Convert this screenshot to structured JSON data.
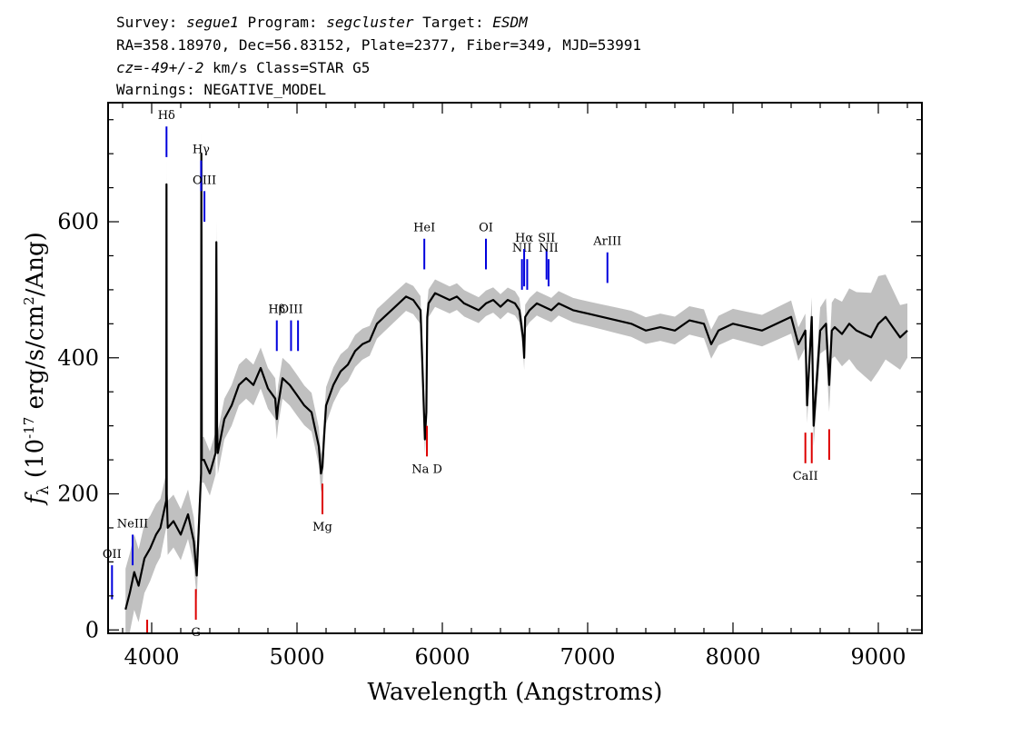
{
  "header": {
    "line1": {
      "a": "Survey: ",
      "survey": "segue1",
      "b": " Program: ",
      "program": "segcluster",
      "c": " Target: ",
      "target": "ESDM"
    },
    "line2": "RA=358.18970, Dec=56.83152, Plate=2377, Fiber=349, MJD=53991",
    "line3": {
      "cz": "cz=-49+/-2",
      "rest": " km/s Class=STAR G5"
    },
    "line4": "Warnings: NEGATIVE_MODEL"
  },
  "chart_data": {
    "type": "line",
    "xlabel": "Wavelength (Angstroms)",
    "ylabel": "f_λ (10^-17 erg/s/cm^2/Ang)",
    "ylabel_parts": {
      "f": "f",
      "lam": "λ",
      "a": " (10",
      "exp1": "-17",
      "b": " erg/s/cm",
      "exp2": "2",
      "c": "/Ang)"
    },
    "xlim": [
      3700,
      9300
    ],
    "ylim": [
      -5,
      775
    ],
    "x_ticks": [
      4000,
      5000,
      6000,
      7000,
      8000,
      9000
    ],
    "x_tick_labels": [
      "4000",
      "5000",
      "6000",
      "7000",
      "8000",
      "9000"
    ],
    "y_ticks": [
      0,
      200,
      400,
      600
    ],
    "y_tick_labels": [
      "0",
      "200",
      "400",
      "600"
    ],
    "series": [
      {
        "name": "flux",
        "color": "#000000",
        "x": [
          3820,
          3850,
          3880,
          3910,
          3950,
          3990,
          4030,
          4060,
          4080,
          4100,
          4102,
          4104,
          4110,
          4150,
          4200,
          4250,
          4290,
          4310,
          4330,
          4340,
          4342,
          4345,
          4360,
          4400,
          4440,
          4445,
          4450,
          4455,
          4500,
          4550,
          4600,
          4650,
          4700,
          4750,
          4800,
          4850,
          4861,
          4870,
          4900,
          4950,
          5000,
          5050,
          5100,
          5150,
          5165,
          5175,
          5185,
          5200,
          5250,
          5300,
          5350,
          5400,
          5450,
          5500,
          5550,
          5600,
          5650,
          5700,
          5750,
          5800,
          5850,
          5880,
          5890,
          5896,
          5905,
          5950,
          6000,
          6050,
          6100,
          6150,
          6200,
          6250,
          6300,
          6350,
          6400,
          6450,
          6500,
          6530,
          6555,
          6563,
          6570,
          6600,
          6650,
          6700,
          6750,
          6800,
          6900,
          7000,
          7100,
          7200,
          7300,
          7400,
          7500,
          7600,
          7700,
          7800,
          7850,
          7900,
          8000,
          8100,
          8200,
          8300,
          8400,
          8450,
          8498,
          8510,
          8542,
          8555,
          8600,
          8640,
          8662,
          8680,
          8700,
          8750,
          8800,
          8850,
          8900,
          8950,
          9000,
          9050,
          9100,
          9150,
          9200
        ],
        "values": [
          30,
          55,
          85,
          65,
          105,
          120,
          140,
          150,
          170,
          190,
          655,
          200,
          150,
          160,
          140,
          170,
          130,
          80,
          180,
          230,
          700,
          250,
          250,
          230,
          260,
          570,
          300,
          260,
          310,
          330,
          360,
          370,
          360,
          385,
          355,
          340,
          310,
          330,
          370,
          360,
          345,
          330,
          320,
          270,
          230,
          240,
          280,
          330,
          360,
          380,
          390,
          410,
          420,
          425,
          450,
          460,
          470,
          480,
          490,
          485,
          470,
          280,
          320,
          460,
          480,
          495,
          490,
          485,
          490,
          480,
          475,
          470,
          480,
          485,
          475,
          485,
          480,
          470,
          430,
          400,
          460,
          470,
          480,
          475,
          470,
          480,
          470,
          465,
          460,
          455,
          450,
          440,
          445,
          440,
          455,
          450,
          420,
          440,
          450,
          445,
          440,
          450,
          460,
          420,
          440,
          330,
          460,
          300,
          440,
          450,
          360,
          440,
          445,
          435,
          450,
          440,
          435,
          430,
          450,
          460,
          445,
          430,
          440
        ]
      },
      {
        "name": "error",
        "color": "#c0c0c0",
        "x": [
          3820,
          4100,
          4500,
          5000,
          5500,
          6000,
          6500,
          7000,
          7500,
          8000,
          8500,
          9000,
          9200
        ],
        "values": [
          60,
          40,
          30,
          30,
          22,
          20,
          18,
          18,
          20,
          22,
          25,
          70,
          40
        ]
      }
    ],
    "emission_lines": [
      {
        "label": "OII",
        "x": 3727,
        "y_top": 95,
        "y_bottom": 45
      },
      {
        "label": "NeIII",
        "x": 3869,
        "y_top": 140,
        "y_bottom": 95
      },
      {
        "label": "Hδ",
        "x": 4102,
        "y_top": 740,
        "y_bottom": 695
      },
      {
        "label": "Hγ",
        "x": 4340,
        "y_top": 690,
        "y_bottom": 645
      },
      {
        "label": "OIII",
        "x": 4363,
        "y_top": 645,
        "y_bottom": 600
      },
      {
        "label": "Hβ",
        "x": 4861,
        "y_top": 455,
        "y_bottom": 410
      },
      {
        "label": "OIII",
        "x": 4959,
        "y_top": 455,
        "y_bottom": 410
      },
      {
        "label": "",
        "x": 5007,
        "y_top": 455,
        "y_bottom": 410
      },
      {
        "label": "HeI",
        "x": 5876,
        "y_top": 575,
        "y_bottom": 530
      },
      {
        "label": "OI",
        "x": 6300,
        "y_top": 575,
        "y_bottom": 530
      },
      {
        "label": "NII",
        "x": 6548,
        "y_top": 545,
        "y_bottom": 500
      },
      {
        "label": "Hα",
        "x": 6563,
        "y_top": 560,
        "y_bottom": 505
      },
      {
        "label": "",
        "x": 6584,
        "y_top": 545,
        "y_bottom": 500
      },
      {
        "label": "SII",
        "x": 6717,
        "y_top": 560,
        "y_bottom": 515
      },
      {
        "label": "NII",
        "x": 6731,
        "y_top": 545,
        "y_bottom": 505
      },
      {
        "label": "ArIII",
        "x": 7136,
        "y_top": 555,
        "y_bottom": 510
      }
    ],
    "absorption_lines": [
      {
        "label": "",
        "x": 3969,
        "y_top": 15,
        "y_bottom": -5
      },
      {
        "label": "G",
        "x": 4304,
        "y_top": 60,
        "y_bottom": 15
      },
      {
        "label": "Mg",
        "x": 5175,
        "y_top": 215,
        "y_bottom": 170
      },
      {
        "label": "Na D",
        "x": 5894,
        "y_top": 300,
        "y_bottom": 255
      },
      {
        "label": "CaII",
        "x": 8498,
        "y_top": 290,
        "y_bottom": 245
      },
      {
        "label": "",
        "x": 8542,
        "y_top": 290,
        "y_bottom": 245
      },
      {
        "label": "",
        "x": 8662,
        "y_top": 295,
        "y_bottom": 250
      }
    ],
    "colors": {
      "emission": "#0000dd",
      "absorption": "#dd0000",
      "flux": "#000000",
      "error": "#c0c0c0"
    }
  }
}
